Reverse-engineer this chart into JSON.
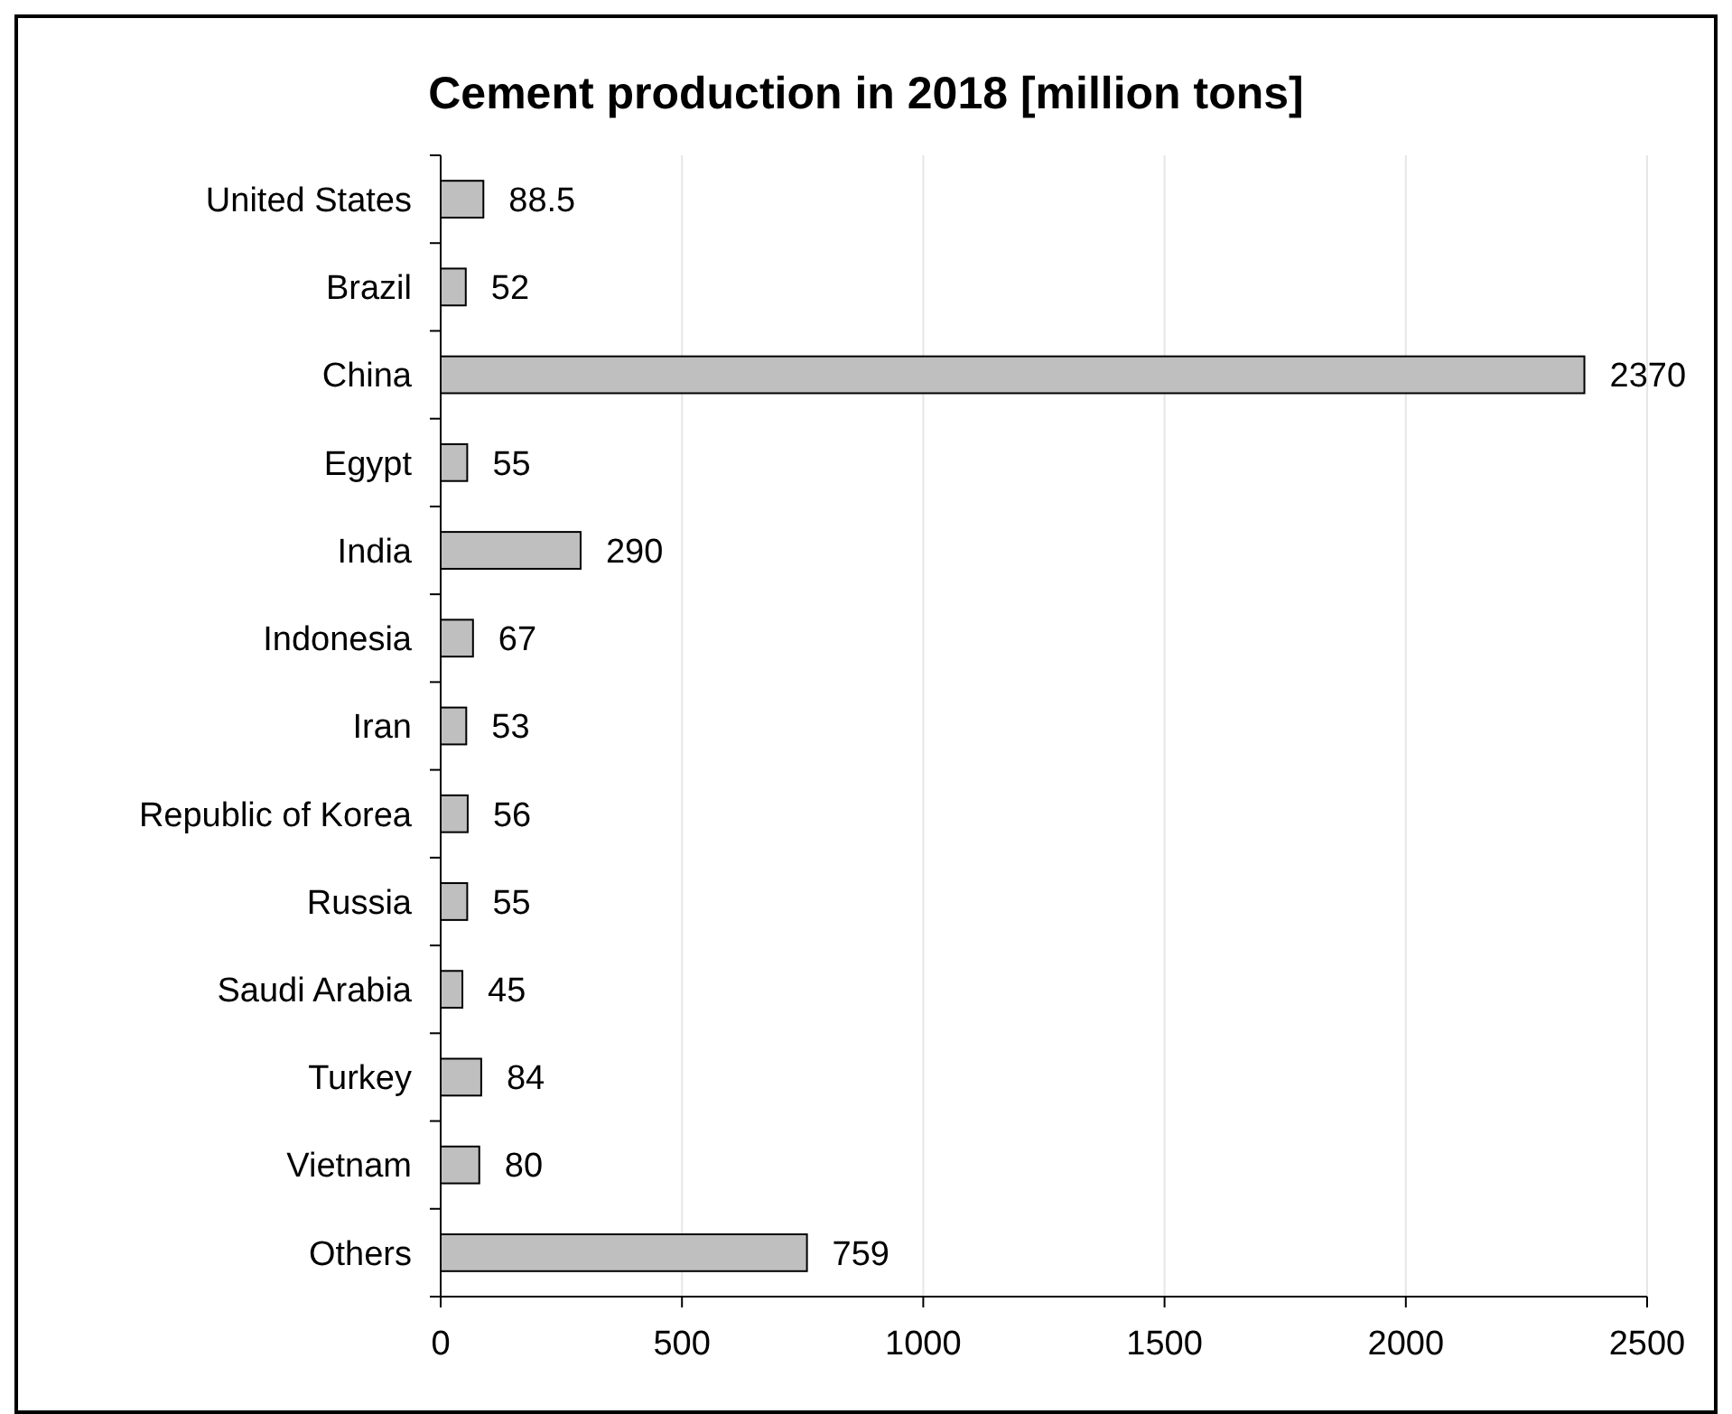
{
  "chart_data": {
    "type": "bar",
    "orientation": "horizontal",
    "title": "Cement production in 2018 [million tons]",
    "categories": [
      "United States",
      "Brazil",
      "China",
      "Egypt",
      "India",
      "Indonesia",
      "Iran",
      "Republic of Korea",
      "Russia",
      "Saudi Arabia",
      "Turkey",
      "Vietnam",
      "Others"
    ],
    "values": [
      88.5,
      52,
      2370,
      55,
      290,
      67,
      53,
      56,
      55,
      45,
      84,
      80,
      759
    ],
    "color": "#bfbfbf",
    "data_labels": true,
    "xlim": [
      0,
      2500
    ],
    "xticks": [
      0,
      500,
      1000,
      1500,
      2000,
      2500
    ],
    "grid": "x"
  }
}
